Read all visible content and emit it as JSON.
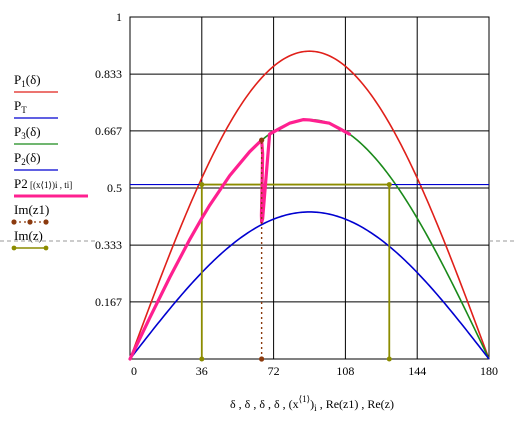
{
  "chart_data": {
    "type": "line",
    "xlabel": "δ , δ , δ , δ , (x⟨1⟩)i , Re(z1) , Re(z)",
    "xlabel_parts": {
      "main": "δ , δ , δ , δ , ",
      "x": "x",
      "sup": "⟨1⟩",
      "sub": "i",
      "tail": " , Re(z1) , Re(z)"
    },
    "xlim": [
      0,
      180
    ],
    "ylim": [
      0,
      1
    ],
    "xticks": [
      0,
      36,
      72,
      108,
      144,
      180
    ],
    "yticks": [
      0,
      0.167,
      0.333,
      0.5,
      0.667,
      0.833,
      1
    ],
    "ytick_labels": [
      "",
      "0.167",
      "0.333",
      "0.5",
      "0.667",
      "0.833",
      "1"
    ],
    "xtick_labels": [
      "0",
      "36",
      "72",
      "108",
      "144",
      "180"
    ],
    "grid": true,
    "legend_position": "left",
    "colors": {
      "red": "#e0201a",
      "green": "#1a8a1a",
      "blue": "#0000d0",
      "magenta": "#ff2090",
      "brown": "#8b3a0e",
      "olive": "#8c8c00",
      "grid": "#000000"
    },
    "legend": [
      {
        "main": "P",
        "sub": "1",
        "rest": "(δ)",
        "color": "#e0201a",
        "style": "solid"
      },
      {
        "main": "P",
        "sub": "T",
        "rest": "",
        "color": "#0000d0",
        "style": "solid"
      },
      {
        "main": "P",
        "sub": "3",
        "rest": "(δ)",
        "color": "#1a8a1a",
        "style": "solid"
      },
      {
        "main": "P",
        "sub": "2",
        "rest": "(δ)",
        "color": "#0000d0",
        "style": "solid"
      },
      {
        "main": "P2",
        "sub": "",
        "rest": "[(x⟨1⟩)i , ti]",
        "color": "#ff2090",
        "style": "thick"
      },
      {
        "main": "Im(z1)",
        "sub": "",
        "rest": "",
        "color": "#8b3a0e",
        "style": "dotted-markers"
      },
      {
        "main": "Im(z)",
        "sub": "",
        "rest": "",
        "color": "#8c8c00",
        "style": "solid-markers"
      }
    ],
    "series": [
      {
        "curve": "P1",
        "amplitude": 0.9,
        "color": "#e0201a"
      },
      {
        "curve": "P3",
        "amplitude": 0.7,
        "color": "#1a8a1a"
      },
      {
        "curve": "P2",
        "amplitude": 0.43,
        "color": "#0000d0"
      },
      {
        "curve": "PT",
        "level": 0.51,
        "color": "#0000d0"
      }
    ],
    "trajectory": {
      "color": "#ff2090",
      "points": [
        [
          0,
          0
        ],
        [
          10,
          0.1216
        ],
        [
          20,
          0.2394
        ],
        [
          30,
          0.35
        ],
        [
          36,
          0.4114
        ],
        [
          40,
          0.45
        ],
        [
          50,
          0.5362
        ],
        [
          60,
          0.6062
        ],
        [
          65,
          0.6344
        ],
        [
          66,
          0.64
        ],
        [
          66.5,
          0.6
        ],
        [
          66.2,
          0.5
        ],
        [
          65.9,
          0.42
        ],
        [
          66,
          0.4
        ],
        [
          66.5,
          0.41
        ],
        [
          70,
          0.6578
        ],
        [
          80,
          0.6894
        ],
        [
          87,
          0.7
        ],
        [
          90,
          0.699
        ],
        [
          100,
          0.6894
        ],
        [
          110,
          0.6578
        ]
      ]
    },
    "im_z1": {
      "color": "#8b3a0e",
      "points": [
        [
          66,
          0
        ],
        [
          66,
          0.64
        ]
      ]
    },
    "im_z": {
      "color": "#8c8c00",
      "points": [
        [
          36,
          0
        ],
        [
          36,
          0.51
        ],
        [
          130,
          0.51
        ],
        [
          130,
          0
        ]
      ]
    }
  }
}
